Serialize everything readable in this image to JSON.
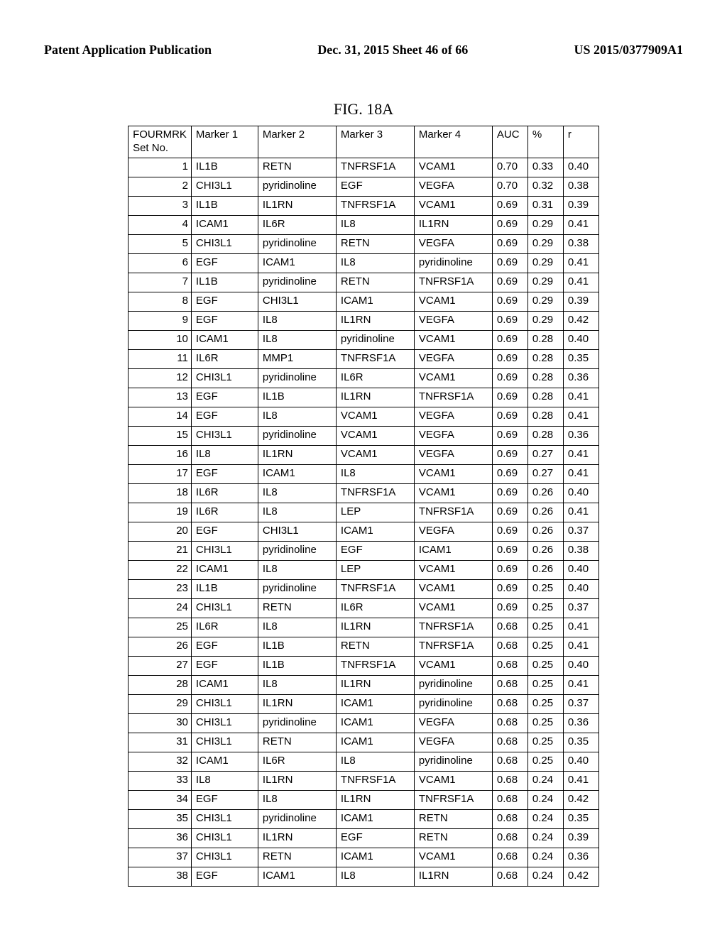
{
  "header": {
    "left": "Patent Application Publication",
    "center": "Dec. 31, 2015   Sheet 46 of 66",
    "right": "US 2015/0377909A1"
  },
  "figure_title": "FIG. 18A",
  "table": {
    "columns_formatted": [
      "FOURMRK<br>Set No.",
      "Marker 1",
      "Marker 2",
      "Marker 3",
      "Marker 4",
      "AUC",
      "%",
      "r"
    ],
    "rows": [
      [
        "1",
        "IL1B",
        "RETN",
        "TNFRSF1A",
        "VCAM1",
        "0.70",
        "0.33",
        "0.40"
      ],
      [
        "2",
        "CHI3L1",
        "pyridinoline",
        "EGF",
        "VEGFA",
        "0.70",
        "0.32",
        "0.38"
      ],
      [
        "3",
        "IL1B",
        "IL1RN",
        "TNFRSF1A",
        "VCAM1",
        "0.69",
        "0.31",
        "0.39"
      ],
      [
        "4",
        "ICAM1",
        "IL6R",
        "IL8",
        "IL1RN",
        "0.69",
        "0.29",
        "0.41"
      ],
      [
        "5",
        "CHI3L1",
        "pyridinoline",
        "RETN",
        "VEGFA",
        "0.69",
        "0.29",
        "0.38"
      ],
      [
        "6",
        "EGF",
        "ICAM1",
        "IL8",
        "pyridinoline",
        "0.69",
        "0.29",
        "0.41"
      ],
      [
        "7",
        "IL1B",
        "pyridinoline",
        "RETN",
        "TNFRSF1A",
        "0.69",
        "0.29",
        "0.41"
      ],
      [
        "8",
        "EGF",
        "CHI3L1",
        "ICAM1",
        "VCAM1",
        "0.69",
        "0.29",
        "0.39"
      ],
      [
        "9",
        "EGF",
        "IL8",
        "IL1RN",
        "VEGFA",
        "0.69",
        "0.29",
        "0.42"
      ],
      [
        "10",
        "ICAM1",
        "IL8",
        "pyridinoline",
        "VCAM1",
        "0.69",
        "0.28",
        "0.40"
      ],
      [
        "11",
        "IL6R",
        "MMP1",
        "TNFRSF1A",
        "VEGFA",
        "0.69",
        "0.28",
        "0.35"
      ],
      [
        "12",
        "CHI3L1",
        "pyridinoline",
        "IL6R",
        "VCAM1",
        "0.69",
        "0.28",
        "0.36"
      ],
      [
        "13",
        "EGF",
        "IL1B",
        "IL1RN",
        "TNFRSF1A",
        "0.69",
        "0.28",
        "0.41"
      ],
      [
        "14",
        "EGF",
        "IL8",
        "VCAM1",
        "VEGFA",
        "0.69",
        "0.28",
        "0.41"
      ],
      [
        "15",
        "CHI3L1",
        "pyridinoline",
        "VCAM1",
        "VEGFA",
        "0.69",
        "0.28",
        "0.36"
      ],
      [
        "16",
        "IL8",
        "IL1RN",
        "VCAM1",
        "VEGFA",
        "0.69",
        "0.27",
        "0.41"
      ],
      [
        "17",
        "EGF",
        "ICAM1",
        "IL8",
        "VCAM1",
        "0.69",
        "0.27",
        "0.41"
      ],
      [
        "18",
        "IL6R",
        "IL8",
        "TNFRSF1A",
        "VCAM1",
        "0.69",
        "0.26",
        "0.40"
      ],
      [
        "19",
        "IL6R",
        "IL8",
        "LEP",
        "TNFRSF1A",
        "0.69",
        "0.26",
        "0.41"
      ],
      [
        "20",
        "EGF",
        "CHI3L1",
        "ICAM1",
        "VEGFA",
        "0.69",
        "0.26",
        "0.37"
      ],
      [
        "21",
        "CHI3L1",
        "pyridinoline",
        "EGF",
        "ICAM1",
        "0.69",
        "0.26",
        "0.38"
      ],
      [
        "22",
        "ICAM1",
        "IL8",
        "LEP",
        "VCAM1",
        "0.69",
        "0.26",
        "0.40"
      ],
      [
        "23",
        "IL1B",
        "pyridinoline",
        "TNFRSF1A",
        "VCAM1",
        "0.69",
        "0.25",
        "0.40"
      ],
      [
        "24",
        "CHI3L1",
        "RETN",
        "IL6R",
        "VCAM1",
        "0.69",
        "0.25",
        "0.37"
      ],
      [
        "25",
        "IL6R",
        "IL8",
        "IL1RN",
        "TNFRSF1A",
        "0.68",
        "0.25",
        "0.41"
      ],
      [
        "26",
        "EGF",
        "IL1B",
        "RETN",
        "TNFRSF1A",
        "0.68",
        "0.25",
        "0.41"
      ],
      [
        "27",
        "EGF",
        "IL1B",
        "TNFRSF1A",
        "VCAM1",
        "0.68",
        "0.25",
        "0.40"
      ],
      [
        "28",
        "ICAM1",
        "IL8",
        "IL1RN",
        "pyridinoline",
        "0.68",
        "0.25",
        "0.41"
      ],
      [
        "29",
        "CHI3L1",
        "IL1RN",
        "ICAM1",
        "pyridinoline",
        "0.68",
        "0.25",
        "0.37"
      ],
      [
        "30",
        "CHI3L1",
        "pyridinoline",
        "ICAM1",
        "VEGFA",
        "0.68",
        "0.25",
        "0.36"
      ],
      [
        "31",
        "CHI3L1",
        "RETN",
        "ICAM1",
        "VEGFA",
        "0.68",
        "0.25",
        "0.35"
      ],
      [
        "32",
        "ICAM1",
        "IL6R",
        "IL8",
        "pyridinoline",
        "0.68",
        "0.25",
        "0.40"
      ],
      [
        "33",
        "IL8",
        "IL1RN",
        "TNFRSF1A",
        "VCAM1",
        "0.68",
        "0.24",
        "0.41"
      ],
      [
        "34",
        "EGF",
        "IL8",
        "IL1RN",
        "TNFRSF1A",
        "0.68",
        "0.24",
        "0.42"
      ],
      [
        "35",
        "CHI3L1",
        "pyridinoline",
        "ICAM1",
        "RETN",
        "0.68",
        "0.24",
        "0.35"
      ],
      [
        "36",
        "CHI3L1",
        "IL1RN",
        "EGF",
        "RETN",
        "0.68",
        "0.24",
        "0.39"
      ],
      [
        "37",
        "CHI3L1",
        "RETN",
        "ICAM1",
        "VCAM1",
        "0.68",
        "0.24",
        "0.36"
      ],
      [
        "38",
        "EGF",
        "ICAM1",
        "IL8",
        "IL1RN",
        "0.68",
        "0.24",
        "0.42"
      ]
    ]
  }
}
